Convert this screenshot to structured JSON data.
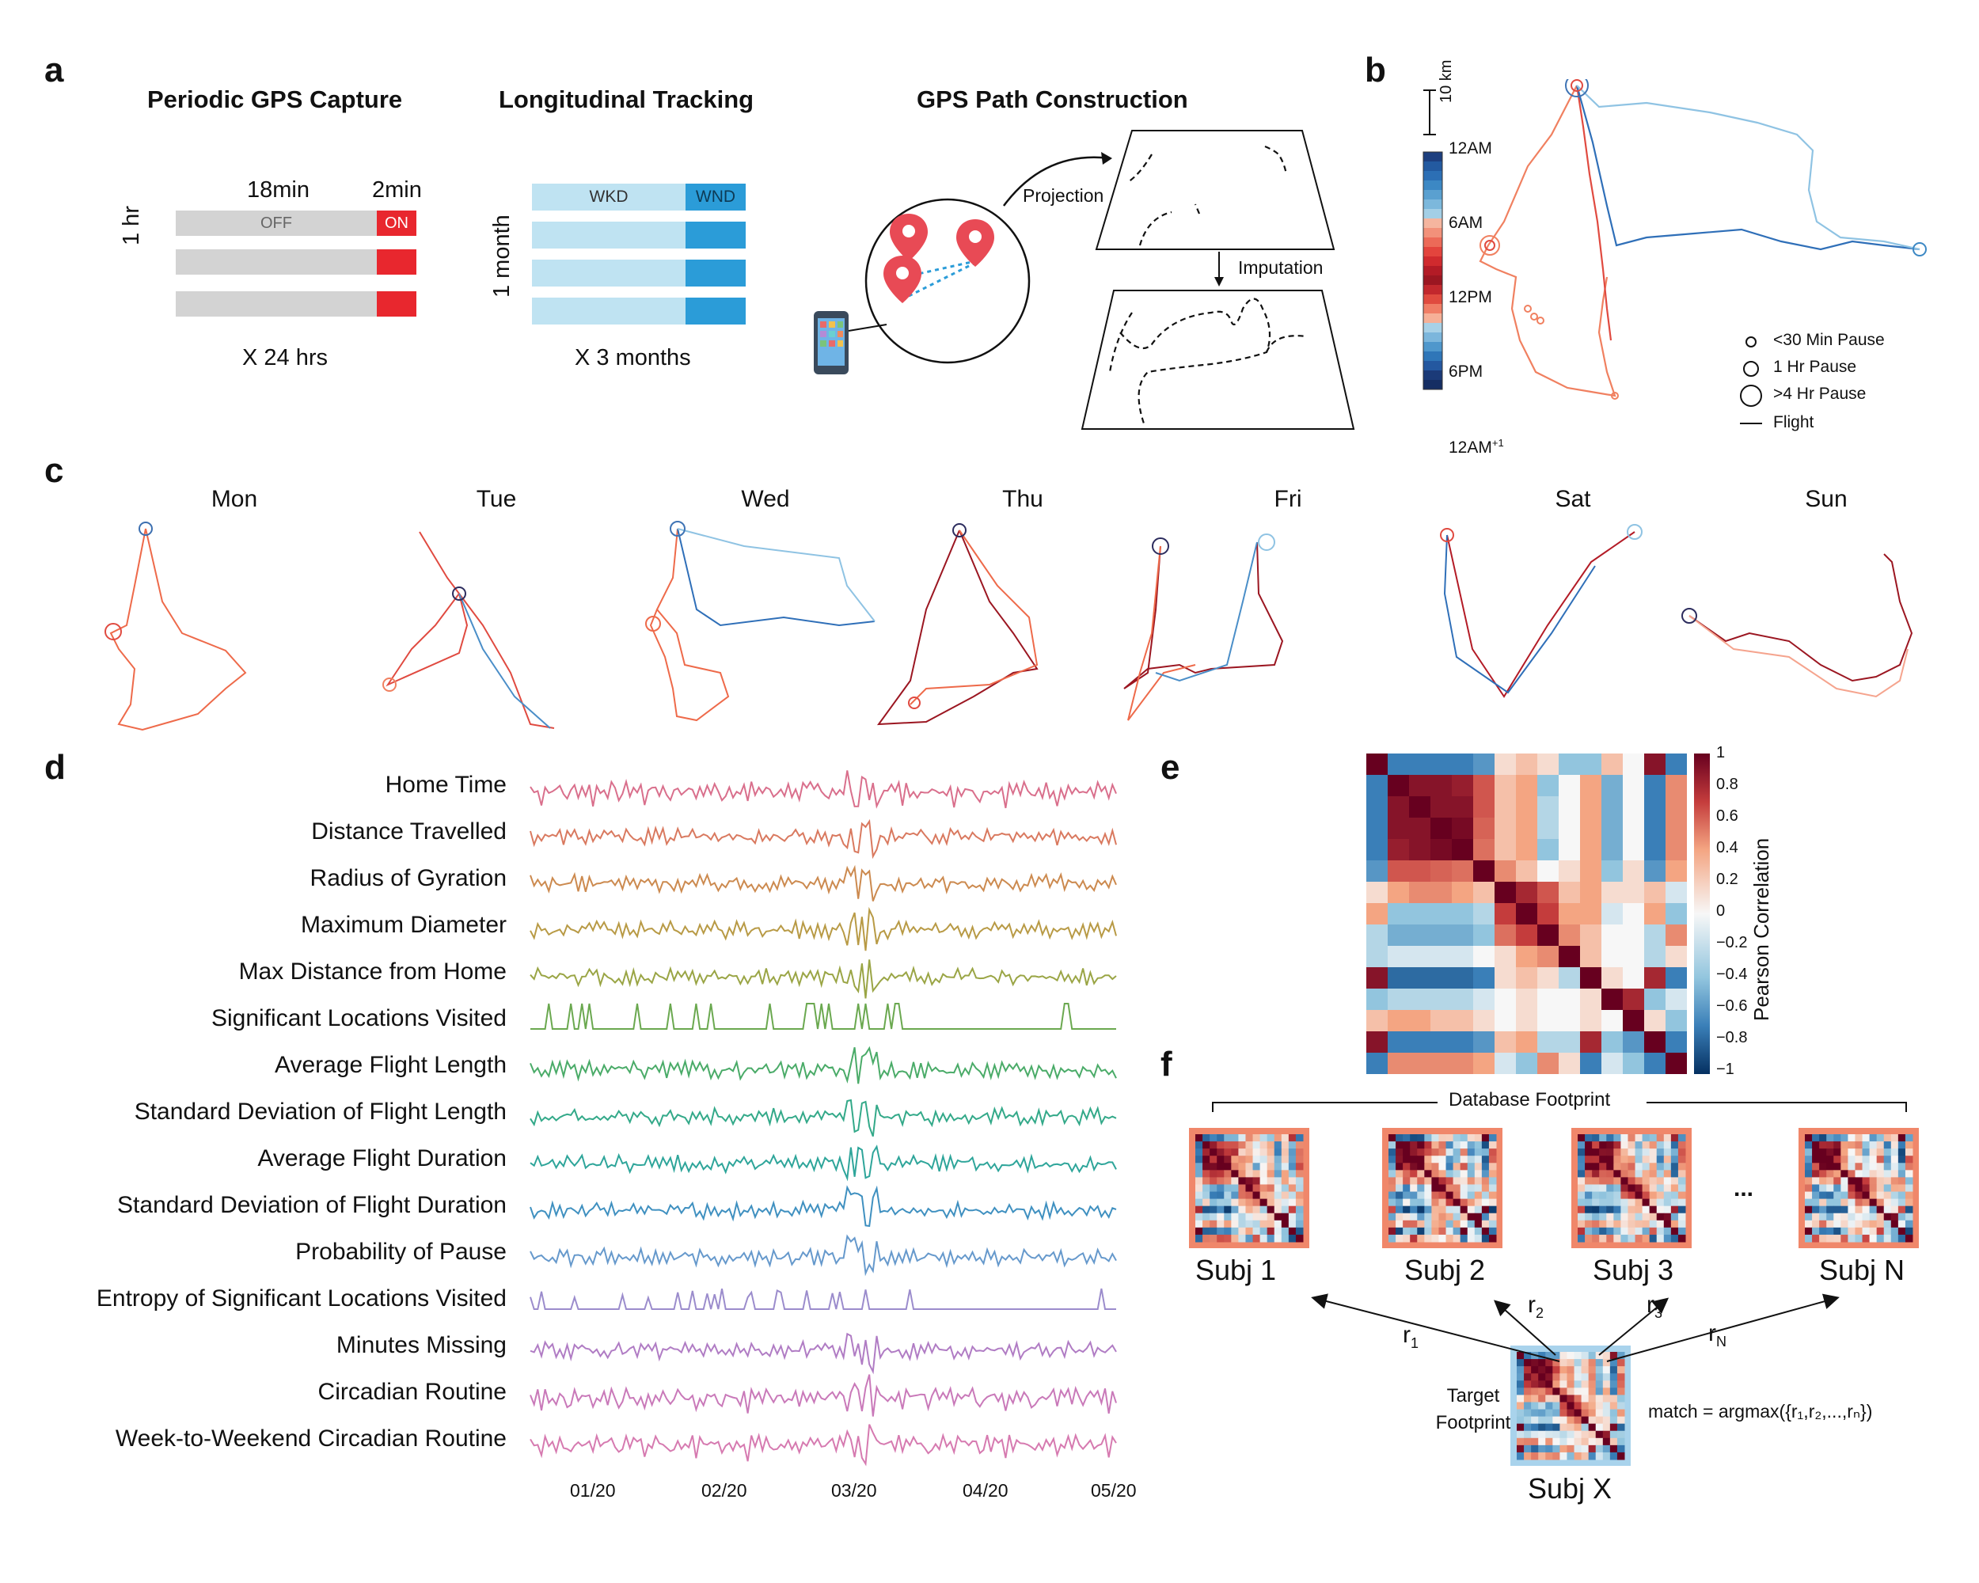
{
  "panel_letters": {
    "a": "a",
    "b": "b",
    "c": "c",
    "d": "d",
    "e": "e",
    "f": "f"
  },
  "panel_a": {
    "capture": {
      "title": "Periodic GPS Capture",
      "off_duration": "18min",
      "on_duration": "2min",
      "off_label": "OFF",
      "on_label": "ON",
      "row_label": "1 hr",
      "multiplier": "X 24 hrs",
      "colors": {
        "off": "#d3d3d3",
        "on": "#e8272e"
      }
    },
    "tracking": {
      "title": "Longitudinal Tracking",
      "weekday_label": "WKD",
      "weekend_label": "WND",
      "row_label": "1 month",
      "multiplier": "X 3 months",
      "colors": {
        "weekday": "#bfe3f2",
        "weekend": "#2b9cd8"
      }
    },
    "path": {
      "title": "GPS Path Construction",
      "projection_label": "Projection",
      "imputation_label": "Imputation",
      "icons": [
        "phone-icon",
        "map-pin-icon"
      ]
    }
  },
  "panel_b": {
    "scale_label": "10 km",
    "colorbar_ticks": [
      "12AM",
      "6AM",
      "12PM",
      "6PM",
      "12AM"
    ],
    "superscript": "+1",
    "legend": [
      "<30 Min Pause",
      "1 Hr Pause",
      ">4 Hr Pause",
      "Flight"
    ]
  },
  "panel_c": {
    "days": [
      "Mon",
      "Tue",
      "Wed",
      "Thu",
      "Fri",
      "Sat",
      "Sun"
    ]
  },
  "panel_d": {
    "metrics": [
      {
        "name": "Home Time",
        "color": "#d96f8c"
      },
      {
        "name": "Distance Travelled",
        "color": "#d9795f"
      },
      {
        "name": "Radius of Gyration",
        "color": "#cc8a4f"
      },
      {
        "name": "Maximum Diameter",
        "color": "#b89a45"
      },
      {
        "name": "Max Distance from Home",
        "color": "#9aa545"
      },
      {
        "name": "Significant Locations Visited",
        "color": "#6aa84f"
      },
      {
        "name": "Average Flight Length",
        "color": "#4aab68"
      },
      {
        "name": "Standard Deviation of Flight Length",
        "color": "#33a989"
      },
      {
        "name": "Average Flight Duration",
        "color": "#2ea59a"
      },
      {
        "name": "Standard  Deviation of Flight Duration",
        "color": "#3f90c0"
      },
      {
        "name": "Probability of Pause",
        "color": "#6699cc"
      },
      {
        "name": "Entropy of Significant Locations Visited",
        "color": "#9b8ccc"
      },
      {
        "name": "Minutes Missing",
        "color": "#b07cc4"
      },
      {
        "name": "Circadian Routine",
        "color": "#c979b9"
      },
      {
        "name": "Week-to-Weekend Circadian Routine",
        "color": "#d67ab0"
      }
    ],
    "x_ticks": [
      "01/20",
      "02/20",
      "03/20",
      "04/20",
      "05/20"
    ]
  },
  "panel_e": {
    "colorbar_label": "Pearson Correlation",
    "colorbar_ticks": [
      "1",
      "0.8",
      "0.6",
      "0.4",
      "0.2",
      "0",
      "−0.2",
      "−0.4",
      "−0.6",
      "−0.8",
      "−1"
    ],
    "chart_data": {
      "type": "heatmap",
      "title": "",
      "range": [
        -1,
        1
      ],
      "matrix": [
        [
          1,
          -0.6,
          -0.6,
          -0.6,
          -0.6,
          -0.5,
          0.1,
          0.2,
          0.1,
          -0.3,
          -0.3,
          0.2,
          0.0,
          0.9,
          -0.6
        ],
        [
          -0.6,
          1,
          0.9,
          0.9,
          0.85,
          0.6,
          0.2,
          0.3,
          -0.3,
          0.0,
          0.3,
          -0.4,
          0.0,
          -0.6,
          0.4
        ],
        [
          -0.6,
          0.9,
          1,
          0.9,
          0.9,
          0.6,
          0.2,
          0.3,
          -0.2,
          0.0,
          0.3,
          -0.4,
          0.0,
          -0.6,
          0.4
        ],
        [
          -0.6,
          0.9,
          0.9,
          1,
          0.95,
          0.55,
          0.2,
          0.3,
          -0.2,
          0.0,
          0.3,
          -0.4,
          0.0,
          -0.6,
          0.4
        ],
        [
          -0.6,
          0.85,
          0.9,
          0.95,
          1,
          0.5,
          0.2,
          0.3,
          -0.3,
          0.0,
          0.3,
          -0.4,
          0.0,
          -0.6,
          0.4
        ],
        [
          -0.5,
          0.6,
          0.6,
          0.55,
          0.5,
          1,
          0.4,
          0.2,
          0.0,
          0.1,
          0.3,
          -0.3,
          0.1,
          -0.5,
          0.3
        ],
        [
          0.1,
          0.3,
          0.4,
          0.4,
          0.3,
          0.2,
          1,
          0.8,
          0.6,
          0.2,
          0.3,
          0.1,
          0.1,
          0.2,
          -0.1
        ],
        [
          0.3,
          -0.3,
          -0.3,
          -0.3,
          -0.3,
          -0.2,
          0.7,
          1,
          0.7,
          0.3,
          0.3,
          -0.1,
          0.0,
          0.3,
          -0.3
        ],
        [
          -0.2,
          -0.4,
          -0.4,
          -0.4,
          -0.4,
          -0.3,
          0.5,
          0.7,
          1,
          0.4,
          0.2,
          0.0,
          0.0,
          -0.2,
          0.4
        ],
        [
          -0.2,
          -0.1,
          -0.1,
          -0.1,
          -0.1,
          0.0,
          0.1,
          0.3,
          0.4,
          1,
          0.2,
          0.0,
          0.0,
          -0.2,
          0.1
        ],
        [
          0.9,
          -0.7,
          -0.7,
          -0.7,
          -0.7,
          -0.6,
          0.1,
          0.2,
          0.1,
          -0.2,
          1,
          0.1,
          0.0,
          0.8,
          -0.6
        ],
        [
          -0.3,
          -0.2,
          -0.2,
          -0.2,
          -0.2,
          -0.1,
          0.0,
          0.1,
          0.0,
          0.0,
          0.1,
          1,
          0.8,
          -0.3,
          -0.1
        ],
        [
          0.2,
          0.3,
          0.3,
          0.2,
          0.2,
          0.1,
          0.0,
          0.1,
          0.0,
          0.0,
          0.1,
          0.0,
          1,
          0.1,
          -0.3
        ],
        [
          0.9,
          -0.6,
          -0.6,
          -0.6,
          -0.6,
          -0.5,
          0.2,
          0.3,
          -0.2,
          -0.2,
          0.8,
          -0.3,
          -0.5,
          1,
          -0.6
        ],
        [
          -0.6,
          0.4,
          0.4,
          0.4,
          0.4,
          0.3,
          -0.1,
          -0.3,
          0.4,
          0.1,
          -0.6,
          -0.1,
          -0.3,
          -0.6,
          1
        ]
      ]
    }
  },
  "panel_f": {
    "database_label": "Database Footprint",
    "subjects": [
      "Subj 1",
      "Subj 2",
      "Subj 3",
      "Subj N"
    ],
    "ellipsis": "...",
    "r_labels": [
      {
        "base": "r",
        "sub": "1"
      },
      {
        "base": "r",
        "sub": "2"
      },
      {
        "base": "r",
        "sub": "3"
      },
      {
        "base": "r",
        "sub": "N"
      }
    ],
    "target_label_line1": "Target",
    "target_label_line2": "Footprint",
    "target_subject": "Subj X",
    "formula": "match = argmax({r₁,r₂,...,rₙ})"
  },
  "colors": {
    "red": "#e8272e",
    "blue": "#2b9cd8",
    "frame_orange": "#f0876a",
    "frame_blue": "#a9d3ec"
  }
}
